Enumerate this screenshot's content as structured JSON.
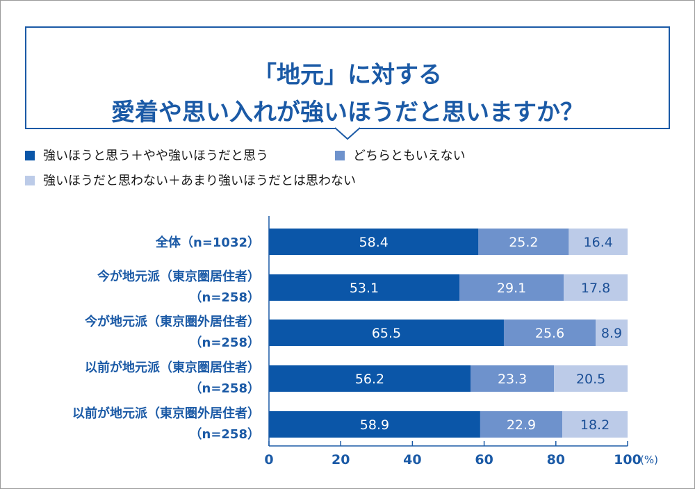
{
  "title": {
    "line1": "「地元」に対する",
    "line2": "愛着や思い入れが強いほうだと思いますか？"
  },
  "colors": {
    "accent": "#1b5aa6",
    "series": [
      "#0b56a8",
      "#6e92cc",
      "#bccbe8"
    ]
  },
  "chart_data": {
    "type": "bar",
    "orientation": "horizontal",
    "stacked": true,
    "categories": [
      [
        "全体（n=1032）"
      ],
      [
        "今が地元派（東京圏居住者）",
        "（n=258）"
      ],
      [
        "今が地元派（東京圏外居住者）",
        "（n=258）"
      ],
      [
        "以前が地元派（東京圏居住者）",
        "（n=258）"
      ],
      [
        "以前が地元派（東京圏外居住者）",
        "（n=258）"
      ]
    ],
    "series": [
      {
        "name": "強いほうと思う＋やや強いほうだと思う",
        "values": [
          58.4,
          53.1,
          65.5,
          56.2,
          58.9
        ]
      },
      {
        "name": "どちらともいえない",
        "values": [
          25.2,
          29.1,
          25.6,
          23.3,
          22.9
        ]
      },
      {
        "name": "強いほうだと思わない＋あまり強いほうだとは思わない",
        "values": [
          16.4,
          17.8,
          8.9,
          20.5,
          18.2
        ]
      }
    ],
    "xlim": [
      0,
      100
    ],
    "xticks": [
      0,
      20,
      40,
      60,
      80,
      100
    ],
    "xunit": "(%)",
    "legend_position": "top"
  }
}
